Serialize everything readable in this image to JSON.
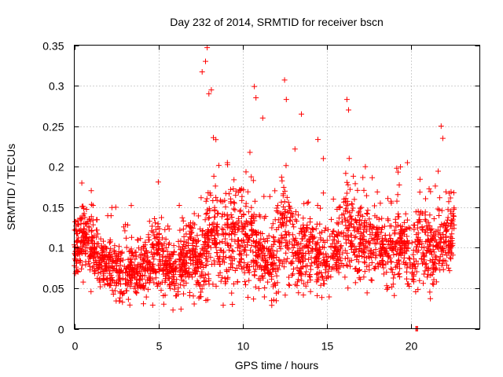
{
  "chart_data": {
    "type": "scatter",
    "title": "Day 232 of 2014, SRMTID for receiver bscn",
    "xlabel": "GPS time / hours",
    "ylabel": "SRMTID / TECUs",
    "xlim": [
      0,
      24.1
    ],
    "ylim": [
      0,
      0.35
    ],
    "xticks": [
      0,
      5,
      10,
      15,
      20
    ],
    "xtick_labels": [
      "0",
      "5",
      "10",
      "15",
      "20"
    ],
    "yticks": [
      0,
      0.05,
      0.1,
      0.15,
      0.2,
      0.25,
      0.3,
      0.35
    ],
    "ytick_labels": [
      "0",
      "0.05",
      "0.1",
      "0.15",
      "0.2",
      "0.25",
      "0.3",
      "0.35"
    ],
    "grid": true,
    "marker": "+",
    "color": "#ff0000",
    "point_count_approx": 2600,
    "baseline_profile": {
      "hours": [
        0,
        0.5,
        1,
        1.5,
        2,
        2.5,
        3,
        3.5,
        4,
        4.5,
        5,
        5.5,
        6,
        6.5,
        7,
        7.5,
        8,
        8.5,
        9,
        9.5,
        10,
        10.5,
        11,
        11.5,
        12,
        12.5,
        13,
        13.5,
        14,
        14.5,
        15,
        15.5,
        16,
        16.5,
        17,
        17.5,
        18,
        18.5,
        19,
        19.5,
        20,
        20.5,
        21,
        21.5,
        22,
        22.5
      ],
      "median_tecu": [
        0.09,
        0.11,
        0.1,
        0.08,
        0.075,
        0.07,
        0.065,
        0.07,
        0.075,
        0.08,
        0.09,
        0.08,
        0.065,
        0.08,
        0.09,
        0.07,
        0.11,
        0.12,
        0.11,
        0.12,
        0.115,
        0.11,
        0.09,
        0.08,
        0.085,
        0.12,
        0.1,
        0.09,
        0.1,
        0.09,
        0.08,
        0.09,
        0.12,
        0.12,
        0.11,
        0.1,
        0.11,
        0.09,
        0.1,
        0.1,
        0.09,
        0.1,
        0.1,
        0.11,
        0.1,
        0.12
      ],
      "spread_tecu": [
        0.03,
        0.04,
        0.035,
        0.03,
        0.028,
        0.028,
        0.028,
        0.03,
        0.03,
        0.03,
        0.035,
        0.03,
        0.028,
        0.035,
        0.04,
        0.04,
        0.06,
        0.055,
        0.045,
        0.045,
        0.05,
        0.05,
        0.04,
        0.035,
        0.04,
        0.055,
        0.04,
        0.035,
        0.04,
        0.035,
        0.03,
        0.035,
        0.05,
        0.05,
        0.04,
        0.035,
        0.04,
        0.035,
        0.04,
        0.035,
        0.04,
        0.04,
        0.04,
        0.045,
        0.04,
        0.04
      ]
    },
    "peaks": [
      {
        "hour": 7.9,
        "value": 0.347
      },
      {
        "hour": 7.8,
        "value": 0.33
      },
      {
        "hour": 7.6,
        "value": 0.317
      },
      {
        "hour": 8.0,
        "value": 0.29
      },
      {
        "hour": 10.7,
        "value": 0.299
      },
      {
        "hour": 10.8,
        "value": 0.285
      },
      {
        "hour": 12.5,
        "value": 0.307
      },
      {
        "hour": 12.6,
        "value": 0.283
      },
      {
        "hour": 13.5,
        "value": 0.265
      },
      {
        "hour": 16.2,
        "value": 0.283
      },
      {
        "hour": 16.3,
        "value": 0.27
      },
      {
        "hour": 21.8,
        "value": 0.25
      },
      {
        "hour": 21.9,
        "value": 0.235
      },
      {
        "hour": 11.2,
        "value": 0.26
      },
      {
        "hour": 9.1,
        "value": 0.205
      },
      {
        "hour": 14.8,
        "value": 0.21
      },
      {
        "hour": 17.3,
        "value": 0.2
      },
      {
        "hour": 19.8,
        "value": 0.205
      }
    ],
    "outliers": [
      {
        "hour": 20.3,
        "value": 0.0
      },
      {
        "hour": 20.35,
        "value": 0.0
      },
      {
        "hour": 20.4,
        "value": 0.0
      }
    ],
    "x_end_hour": 22.6
  }
}
